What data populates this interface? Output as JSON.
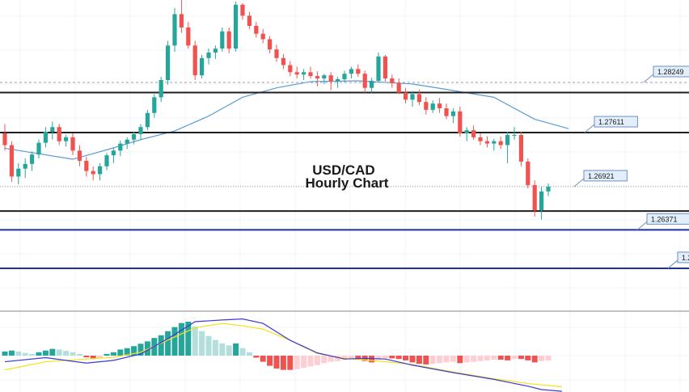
{
  "chart_data": {
    "type": "candlestick",
    "title": "USD/CAD",
    "subtitle": "Hourly Chart",
    "colors": {
      "bull": "#26a69a",
      "bear": "#ef5350",
      "ma": "#5b9bd5",
      "level_black": "#1f1f1f",
      "level_blue": "#1a2ea8",
      "dotted": "#9e9e9e",
      "label_bg": "#e3eefb",
      "label_border": "#6d8fc4",
      "macd_line": "#3a3ad6",
      "signal_line": "#f2e21a",
      "hist_pos_dark": "#26a69a",
      "hist_pos_light": "#b2dfdb",
      "hist_neg_dark": "#ef5350",
      "hist_neg_light": "#ffcdd2"
    },
    "price_range": [
      1.259,
      1.293
    ],
    "price_levels": [
      {
        "value": 1.2812,
        "label": "",
        "color": "black"
      },
      {
        "value": 1.2761,
        "label": "1.27611",
        "color": "black"
      },
      {
        "value": 1.2661,
        "label": "",
        "color": "black"
      },
      {
        "value": 1.2637,
        "label": "1.26371",
        "color": "blue"
      },
      {
        "value": 1.2588,
        "label": "1.2",
        "color": "blue"
      }
    ],
    "dotted_levels": [
      {
        "value": 1.28249,
        "label": "1.28249"
      },
      {
        "value": 1.26921,
        "label": "1.26921"
      }
    ],
    "candles": [
      [
        1.276,
        1.2772,
        1.2738,
        1.2745
      ],
      [
        1.2745,
        1.275,
        1.2698,
        1.2705
      ],
      [
        1.2705,
        1.2722,
        1.2695,
        1.2715
      ],
      [
        1.2715,
        1.2728,
        1.2703,
        1.2721
      ],
      [
        1.2721,
        1.2737,
        1.2712,
        1.2733
      ],
      [
        1.2733,
        1.2752,
        1.2728,
        1.2748
      ],
      [
        1.2748,
        1.2768,
        1.2742,
        1.2762
      ],
      [
        1.2762,
        1.2775,
        1.2752,
        1.2768
      ],
      [
        1.2768,
        1.2772,
        1.2745,
        1.275
      ],
      [
        1.275,
        1.2758,
        1.2743,
        1.2755
      ],
      [
        1.2755,
        1.276,
        1.2732,
        1.2738
      ],
      [
        1.2738,
        1.2745,
        1.2718,
        1.2725
      ],
      [
        1.2725,
        1.273,
        1.2705,
        1.2712
      ],
      [
        1.2712,
        1.2718,
        1.27,
        1.2708
      ],
      [
        1.2708,
        1.2722,
        1.27,
        1.2718
      ],
      [
        1.2718,
        1.2735,
        1.2713,
        1.2732
      ],
      [
        1.2732,
        1.2742,
        1.2722,
        1.2738
      ],
      [
        1.2738,
        1.2751,
        1.2731,
        1.2747
      ],
      [
        1.2747,
        1.2755,
        1.274,
        1.2752
      ],
      [
        1.2752,
        1.2762,
        1.2746,
        1.2759
      ],
      [
        1.2759,
        1.2772,
        1.2752,
        1.2768
      ],
      [
        1.2768,
        1.279,
        1.2764,
        1.2786
      ],
      [
        1.2786,
        1.281,
        1.278,
        1.2806
      ],
      [
        1.2806,
        1.2832,
        1.28,
        1.2828
      ],
      [
        1.2828,
        1.2878,
        1.2822,
        1.2872
      ],
      [
        1.2872,
        1.292,
        1.2864,
        1.2912
      ],
      [
        1.2912,
        1.293,
        1.2888,
        1.2895
      ],
      [
        1.2895,
        1.2902,
        1.2868,
        1.2872
      ],
      [
        1.2872,
        1.2878,
        1.2828,
        1.2834
      ],
      [
        1.2834,
        1.286,
        1.283,
        1.2856
      ],
      [
        1.2856,
        1.2868,
        1.2848,
        1.2863
      ],
      [
        1.2863,
        1.2872,
        1.2855,
        1.2868
      ],
      [
        1.2868,
        1.2895,
        1.2864,
        1.289
      ],
      [
        1.289,
        1.2895,
        1.2862,
        1.2868
      ],
      [
        1.2868,
        1.2928,
        1.2864,
        1.2924
      ],
      [
        1.2924,
        1.2926,
        1.2905,
        1.291
      ],
      [
        1.291,
        1.2915,
        1.2893,
        1.2897
      ],
      [
        1.2897,
        1.2902,
        1.2882,
        1.2887
      ],
      [
        1.2887,
        1.2893,
        1.2875,
        1.288
      ],
      [
        1.288,
        1.2884,
        1.2862,
        1.2867
      ],
      [
        1.2867,
        1.2873,
        1.2851,
        1.2856
      ],
      [
        1.2856,
        1.2861,
        1.2842,
        1.2847
      ],
      [
        1.2847,
        1.2852,
        1.2833,
        1.2838
      ],
      [
        1.2838,
        1.2845,
        1.283,
        1.2835
      ],
      [
        1.2835,
        1.2842,
        1.2828,
        1.2838
      ],
      [
        1.2838,
        1.2845,
        1.283,
        1.2833
      ],
      [
        1.2833,
        1.2839,
        1.282,
        1.283
      ],
      [
        1.283,
        1.2836,
        1.2823,
        1.2834
      ],
      [
        1.2834,
        1.2838,
        1.2815,
        1.2826
      ],
      [
        1.2826,
        1.2832,
        1.2818,
        1.2829
      ],
      [
        1.2829,
        1.284,
        1.2825,
        1.2836
      ],
      [
        1.2836,
        1.2845,
        1.283,
        1.2842
      ],
      [
        1.2842,
        1.2848,
        1.2832,
        1.2836
      ],
      [
        1.2836,
        1.284,
        1.2812,
        1.2818
      ],
      [
        1.2818,
        1.2831,
        1.2812,
        1.2827
      ],
      [
        1.2827,
        1.2863,
        1.2825,
        1.2858
      ],
      [
        1.2858,
        1.286,
        1.2826,
        1.283
      ],
      [
        1.283,
        1.2835,
        1.2818,
        1.2824
      ],
      [
        1.2824,
        1.283,
        1.281,
        1.2812
      ],
      [
        1.2812,
        1.2818,
        1.2798,
        1.2803
      ],
      [
        1.2803,
        1.2814,
        1.2794,
        1.281
      ],
      [
        1.281,
        1.2816,
        1.2796,
        1.28
      ],
      [
        1.28,
        1.2806,
        1.2784,
        1.279
      ],
      [
        1.279,
        1.2802,
        1.2786,
        1.2798
      ],
      [
        1.2798,
        1.2805,
        1.2786,
        1.2792
      ],
      [
        1.2792,
        1.2798,
        1.2778,
        1.2782
      ],
      [
        1.2782,
        1.2792,
        1.2773,
        1.2788
      ],
      [
        1.2788,
        1.2794,
        1.2756,
        1.276
      ],
      [
        1.276,
        1.2768,
        1.275,
        1.2764
      ],
      [
        1.2764,
        1.277,
        1.2752,
        1.2755
      ],
      [
        1.2755,
        1.276,
        1.2745,
        1.275
      ],
      [
        1.275,
        1.2756,
        1.2742,
        1.2747
      ],
      [
        1.2747,
        1.2753,
        1.2738,
        1.275
      ],
      [
        1.275,
        1.2756,
        1.274,
        1.2745
      ],
      [
        1.2745,
        1.2762,
        1.2722,
        1.2758
      ],
      [
        1.2758,
        1.2768,
        1.2752,
        1.2758
      ],
      [
        1.2758,
        1.2762,
        1.2718,
        1.2724
      ],
      [
        1.2724,
        1.2728,
        1.269,
        1.2694
      ],
      [
        1.2694,
        1.27,
        1.2654,
        1.2662
      ],
      [
        1.2662,
        1.2692,
        1.265,
        1.2686
      ],
      [
        1.2686,
        1.2696,
        1.268,
        1.2692
      ]
    ],
    "moving_average": [
      [
        0,
        1.2741
      ],
      [
        10,
        1.2727
      ],
      [
        15,
        1.2739
      ],
      [
        20,
        1.2752
      ],
      [
        25,
        1.2763
      ],
      [
        30,
        1.2782
      ],
      [
        35,
        1.2806
      ],
      [
        40,
        1.2818
      ],
      [
        45,
        1.2826
      ],
      [
        52,
        1.2827
      ],
      [
        60,
        1.2823
      ],
      [
        65,
        1.2816
      ],
      [
        72,
        1.2806
      ],
      [
        78,
        1.2778
      ],
      [
        83,
        1.2766
      ]
    ],
    "macd": {
      "histogram": [
        0.12,
        0.15,
        0.12,
        0.08,
        0.05,
        0.1,
        0.15,
        0.2,
        0.18,
        0.14,
        0.1,
        0.05,
        -0.05,
        -0.1,
        -0.08,
        0.05,
        0.1,
        0.18,
        0.22,
        0.28,
        0.35,
        0.42,
        0.52,
        0.6,
        0.72,
        0.84,
        0.96,
        1.0,
        0.86,
        0.72,
        0.58,
        0.46,
        0.36,
        0.3,
        0.36,
        0.22,
        0.1,
        -0.06,
        -0.18,
        -0.3,
        -0.38,
        -0.42,
        -0.42,
        -0.4,
        -0.36,
        -0.32,
        -0.28,
        -0.22,
        -0.18,
        -0.16,
        -0.12,
        -0.1,
        -0.12,
        -0.16,
        -0.2,
        -0.12,
        -0.08,
        -0.08,
        -0.1,
        -0.14,
        -0.2,
        -0.24,
        -0.26,
        -0.24,
        -0.22,
        -0.2,
        -0.18,
        -0.22,
        -0.2,
        -0.18,
        -0.16,
        -0.14,
        -0.12,
        -0.12,
        -0.14,
        -0.1,
        -0.1,
        -0.14,
        -0.2,
        -0.16,
        -0.14
      ],
      "macd_line": [
        [
          0,
          -0.18
        ],
        [
          6,
          -0.06
        ],
        [
          12,
          -0.22
        ],
        [
          16,
          -0.14
        ],
        [
          20,
          0.05
        ],
        [
          24,
          0.5
        ],
        [
          28,
          1.0
        ],
        [
          32,
          1.05
        ],
        [
          35,
          1.08
        ],
        [
          38,
          0.95
        ],
        [
          42,
          0.45
        ],
        [
          46,
          0.08
        ],
        [
          50,
          -0.1
        ],
        [
          53,
          -0.08
        ],
        [
          56,
          -0.1
        ],
        [
          60,
          -0.28
        ],
        [
          66,
          -0.5
        ],
        [
          72,
          -0.7
        ],
        [
          77,
          -0.9
        ],
        [
          79,
          -1.0
        ],
        [
          82,
          -1.05
        ]
      ],
      "signal_line": [
        [
          0,
          -0.42
        ],
        [
          6,
          -0.18
        ],
        [
          12,
          -0.1
        ],
        [
          16,
          -0.05
        ],
        [
          20,
          0.1
        ],
        [
          24,
          0.46
        ],
        [
          28,
          0.82
        ],
        [
          32,
          0.95
        ],
        [
          35,
          0.88
        ],
        [
          38,
          0.78
        ],
        [
          42,
          0.45
        ],
        [
          46,
          0.06
        ],
        [
          50,
          -0.08
        ],
        [
          55,
          -0.16
        ],
        [
          60,
          -0.26
        ],
        [
          66,
          -0.48
        ],
        [
          72,
          -0.68
        ],
        [
          77,
          -0.82
        ],
        [
          82,
          -0.92
        ]
      ]
    }
  }
}
